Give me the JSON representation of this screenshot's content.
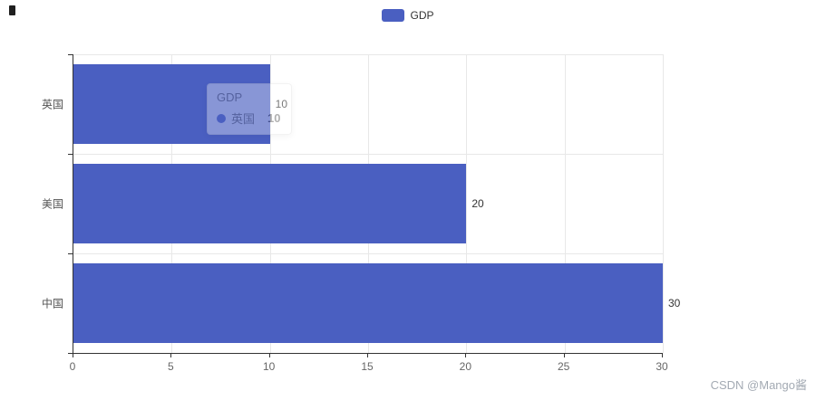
{
  "legend": {
    "label": "GDP"
  },
  "tooltip": {
    "title": "GDP",
    "series_name": "英国",
    "value": "10"
  },
  "watermark": "CSDN @Mango酱",
  "colors": {
    "bar": "#4a5fc1",
    "axis": "#333333",
    "grid": "#e8e8e8",
    "tick_text": "#666666"
  },
  "chart_data": {
    "type": "bar",
    "orientation": "horizontal",
    "title": "",
    "series_name": "GDP",
    "categories": [
      "英国",
      "美国",
      "中国"
    ],
    "values": [
      10,
      20,
      30
    ],
    "value_labels": [
      "10",
      "20",
      "30"
    ],
    "xlabel": "",
    "ylabel": "",
    "xlim": [
      0,
      30
    ],
    "x_ticks": [
      0,
      5,
      10,
      15,
      20,
      25,
      30
    ],
    "grid": "vertical-and-category-splitlines",
    "legend_position": "top-center"
  }
}
